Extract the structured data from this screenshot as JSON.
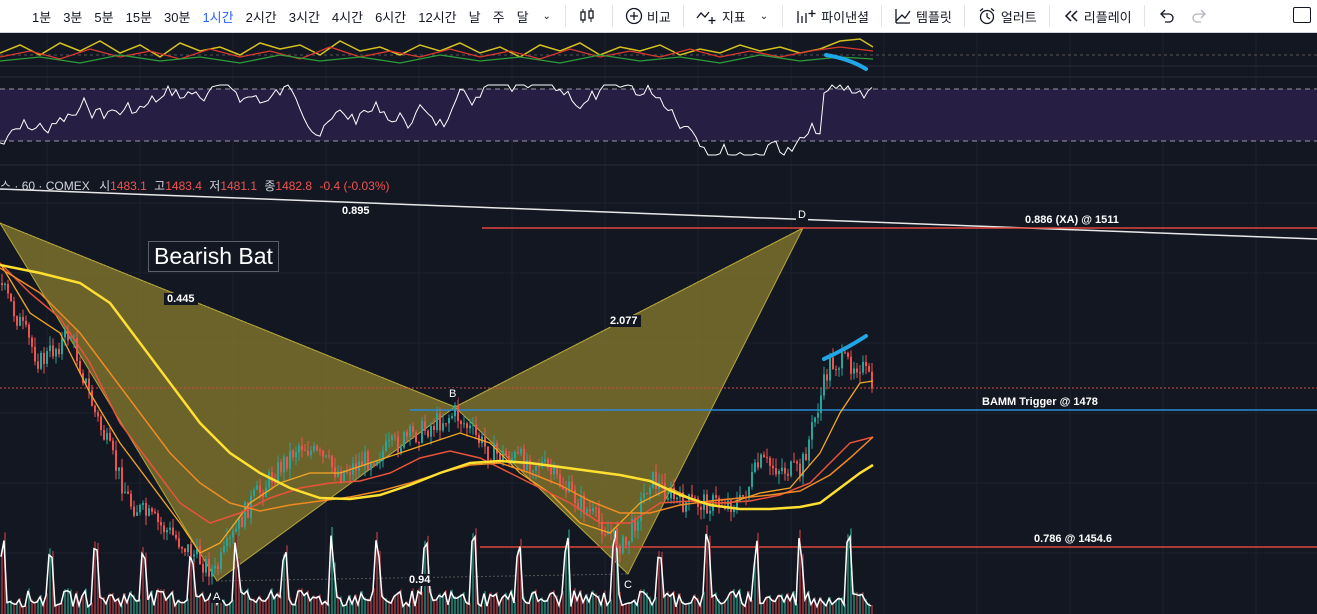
{
  "toolbar": {
    "timeframes": [
      "1분",
      "3분",
      "5분",
      "15분",
      "30분",
      "1시간",
      "2시간",
      "3시간",
      "4시간",
      "6시간",
      "12시간",
      "날",
      "주",
      "달"
    ],
    "active_timeframe": "1시간",
    "compare_label": "비교",
    "indicators_label": "지표",
    "pine_label": "파이낸셜",
    "templates_label": "템플릿",
    "alert_label": "얼러트",
    "replay_label": "리플레이"
  },
  "legend": {
    "symbol": "스 · 60 · COMEX",
    "open_label": "시",
    "open": "1483.1",
    "high_label": "고",
    "high": "1483.4",
    "low_label": "저",
    "low": "1481.1",
    "close_label": "종",
    "close": "1482.8",
    "change": "-0.4 (-0.03%)"
  },
  "pattern": {
    "title": "Bearish Bat",
    "points": {
      "a": "A",
      "b": "B",
      "c": "C",
      "d": "D"
    },
    "ratios": {
      "xb": "0.445",
      "ac": "0.94",
      "bd": "2.077",
      "xd": "0.895"
    }
  },
  "levels": {
    "xa": "0.886 (XA) @ 1511",
    "bamm": "BAMM Trigger @ 1478",
    "r786": "0.786 @ 1454.6"
  },
  "colors": {
    "background": "#131722",
    "pattern_fill": "#8a7d2e",
    "level_red": "#e0473a",
    "bamm_blue": "#2a8cd8",
    "ma_yellow": "#ffe030",
    "ma_orange": "#f5a623",
    "candle_up": "#26a69a",
    "candle_down": "#ef5350",
    "annotation_cyan": "#1fa7e8"
  }
}
